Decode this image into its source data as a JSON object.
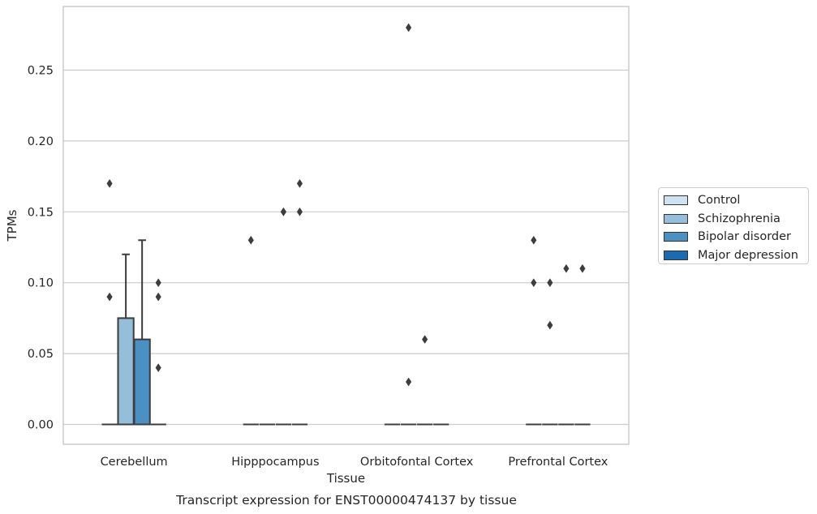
{
  "chart_data": {
    "type": "box",
    "title": "Transcript expression for ENST00000474137 by tissue",
    "xlabel": "Tissue",
    "ylabel": "TPMs",
    "ylim": [
      -0.014,
      0.295
    ],
    "yticks": [
      "0.00",
      "0.05",
      "0.10",
      "0.15",
      "0.20",
      "0.25"
    ],
    "categories": [
      "Cerebellum",
      "Hipppocampus",
      "Orbitofontal Cortex",
      "Prefrontal Cortex"
    ],
    "legend_position": "right",
    "grid": true,
    "series": [
      {
        "name": "Control",
        "color": "#d0e1f2",
        "boxes": [
          {
            "q1": 0,
            "median": 0,
            "q3": 0,
            "whislo": 0,
            "whishi": 0,
            "fliers": [
              0.17,
              0.09
            ]
          },
          {
            "q1": 0,
            "median": 0,
            "q3": 0,
            "whislo": 0,
            "whishi": 0,
            "fliers": [
              0.13
            ]
          },
          {
            "q1": 0,
            "median": 0,
            "q3": 0,
            "whislo": 0,
            "whishi": 0,
            "fliers": []
          },
          {
            "q1": 0,
            "median": 0,
            "q3": 0,
            "whislo": 0,
            "whishi": 0,
            "fliers": [
              0.13,
              0.1
            ]
          }
        ]
      },
      {
        "name": "Schizophrenia",
        "color": "#94bed9",
        "boxes": [
          {
            "q1": 0,
            "median": 0,
            "q3": 0.075,
            "whislo": 0,
            "whishi": 0.12,
            "fliers": []
          },
          {
            "q1": 0,
            "median": 0,
            "q3": 0,
            "whislo": 0,
            "whishi": 0,
            "fliers": []
          },
          {
            "q1": 0,
            "median": 0,
            "q3": 0,
            "whislo": 0,
            "whishi": 0,
            "fliers": [
              0.28,
              0.03
            ]
          },
          {
            "q1": 0,
            "median": 0,
            "q3": 0,
            "whislo": 0,
            "whishi": 0,
            "fliers": [
              0.1,
              0.07
            ]
          }
        ]
      },
      {
        "name": "Bipolar disorder",
        "color": "#4a90c2",
        "boxes": [
          {
            "q1": 0,
            "median": 0,
            "q3": 0.06,
            "whislo": 0,
            "whishi": 0.13,
            "fliers": []
          },
          {
            "q1": 0,
            "median": 0,
            "q3": 0,
            "whislo": 0,
            "whishi": 0,
            "fliers": [
              0.15,
              0.15
            ]
          },
          {
            "q1": 0,
            "median": 0,
            "q3": 0,
            "whislo": 0,
            "whishi": 0,
            "fliers": [
              0.06
            ]
          },
          {
            "q1": 0,
            "median": 0,
            "q3": 0,
            "whislo": 0,
            "whishi": 0,
            "fliers": [
              0.11
            ]
          }
        ]
      },
      {
        "name": "Major depression",
        "color": "#1c6aaf",
        "boxes": [
          {
            "q1": 0,
            "median": 0,
            "q3": 0,
            "whislo": 0,
            "whishi": 0,
            "fliers": [
              0.1,
              0.09,
              0.04
            ]
          },
          {
            "q1": 0,
            "median": 0,
            "q3": 0,
            "whislo": 0,
            "whishi": 0,
            "fliers": [
              0.17,
              0.15
            ]
          },
          {
            "q1": 0,
            "median": 0,
            "q3": 0,
            "whislo": 0,
            "whishi": 0,
            "fliers": []
          },
          {
            "q1": 0,
            "median": 0,
            "q3": 0,
            "whislo": 0,
            "whishi": 0,
            "fliers": [
              0.11
            ]
          }
        ]
      }
    ]
  }
}
